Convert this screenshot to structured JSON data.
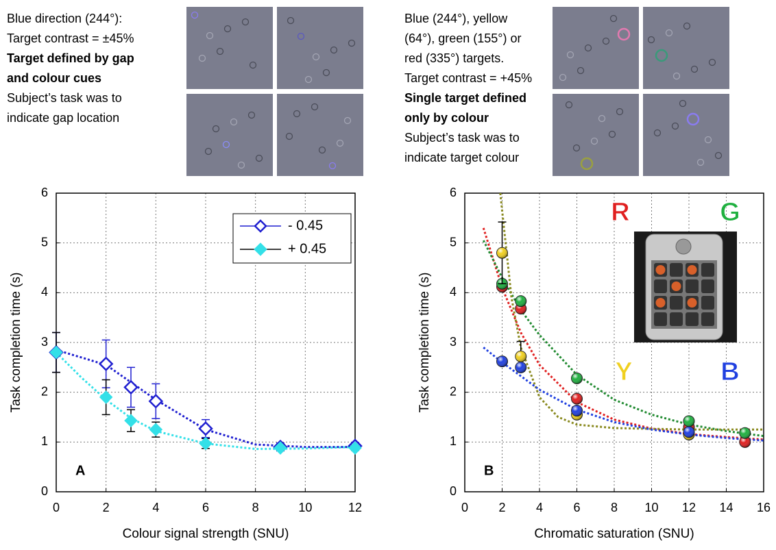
{
  "descriptions": [
    {
      "lines": [
        {
          "text": "Blue direction (244°):",
          "bold": false
        },
        {
          "text": "Target contrast = ±45%",
          "bold": false
        },
        {
          "text": "Target defined by gap",
          "bold": true
        },
        {
          "text": "and colour cues",
          "bold": true
        },
        {
          "text": "Subject’s task was to",
          "bold": false
        },
        {
          "text": "indicate gap location",
          "bold": false
        }
      ]
    },
    {
      "lines": [
        {
          "text": "Blue (244°), yellow",
          "bold": false
        },
        {
          "text": "(64°), green (155°) or",
          "bold": false
        },
        {
          "text": "red (335°) targets.",
          "bold": false
        },
        {
          "text": "Target contrast = +45%",
          "bold": false
        },
        {
          "text": "Single target defined",
          "bold": true
        },
        {
          "text": "only by colour",
          "bold": true
        },
        {
          "text": "Subject’s task was to",
          "bold": false
        },
        {
          "text": "indicate target colour",
          "bold": false
        }
      ]
    }
  ],
  "chart_data": [
    {
      "type": "scatter",
      "panel_label": "A",
      "x_label": "Colour signal strength (SNU)",
      "y_label": "Task completion time (s)",
      "xlim": [
        0,
        12
      ],
      "xticks": [
        0,
        2,
        4,
        6,
        8,
        10,
        12
      ],
      "ylim": [
        0,
        6
      ],
      "yticks": [
        0,
        1,
        2,
        3,
        4,
        5,
        6
      ],
      "grid": true,
      "legend": "upper right",
      "series": [
        {
          "name": "- 0.45",
          "color": "#1f1fd0",
          "error_color": "#1f1fd0",
          "marker": "diamond-open",
          "x": [
            0,
            2,
            3,
            4,
            6,
            9,
            12
          ],
          "values": [
            2.8,
            2.57,
            2.1,
            1.82,
            1.27,
            0.9,
            0.92
          ],
          "errors": [
            0.4,
            0.48,
            0.4,
            0.35,
            0.18,
            0.08,
            0.07
          ],
          "fit": {
            "x": [
              0,
              2,
              4,
              6,
              8,
              10,
              12
            ],
            "values": [
              2.85,
              2.55,
              1.85,
              1.25,
              0.95,
              0.9,
              0.9
            ]
          }
        },
        {
          "name": "+ 0.45",
          "color": "#33e0e8",
          "error_color": "#000000",
          "marker": "diamond",
          "x": [
            0,
            2,
            3,
            4,
            6,
            9,
            12
          ],
          "values": [
            2.8,
            1.9,
            1.43,
            1.25,
            0.97,
            0.88,
            0.88
          ],
          "errors": [
            0.4,
            0.35,
            0.22,
            0.15,
            0.1,
            0.05,
            0.05
          ],
          "fit": {
            "x": [
              0,
              1,
              2,
              3,
              4,
              6,
              8,
              10,
              12
            ],
            "values": [
              2.8,
              2.3,
              1.85,
              1.48,
              1.22,
              0.97,
              0.86,
              0.87,
              0.9
            ]
          }
        }
      ]
    },
    {
      "type": "scatter",
      "panel_label": "B",
      "x_label": "Chromatic saturation (SNU)",
      "y_label": "Task completion time (s)",
      "xlim": [
        0,
        16
      ],
      "xticks": [
        0,
        2,
        4,
        6,
        8,
        10,
        12,
        14,
        16
      ],
      "ylim": [
        0,
        6
      ],
      "yticks": [
        0,
        1,
        2,
        3,
        4,
        5,
        6
      ],
      "grid": true,
      "series": [
        {
          "name": "R",
          "color": "#e02020",
          "marker": "sphere",
          "x": [
            2,
            3,
            6,
            12,
            15
          ],
          "values": [
            4.12,
            3.68,
            1.87,
            1.3,
            1.0
          ],
          "fit": {
            "x": [
              1,
              2,
              3,
              4,
              6,
              8,
              10,
              12,
              14,
              16
            ],
            "values": [
              5.3,
              4.1,
              3.2,
              2.55,
              1.8,
              1.45,
              1.27,
              1.16,
              1.1,
              1.05
            ]
          }
        },
        {
          "name": "G",
          "color": "#20b040",
          "marker": "sphere",
          "x": [
            2,
            3,
            6,
            12,
            15
          ],
          "values": [
            4.18,
            3.83,
            2.28,
            1.42,
            1.18
          ],
          "fit": {
            "x": [
              1,
              2,
              3,
              4,
              6,
              8,
              10,
              12,
              14,
              16
            ],
            "values": [
              5.05,
              4.3,
              3.65,
              3.15,
              2.35,
              1.85,
              1.55,
              1.35,
              1.22,
              1.12
            ]
          }
        },
        {
          "name": "Y",
          "color": "#f0d020",
          "marker": "sphere",
          "x": [
            2,
            3,
            6,
            12
          ],
          "values": [
            4.8,
            2.72,
            1.55,
            1.15
          ],
          "errors": [
            0.62,
            0.3,
            0.05,
            0.05
          ],
          "fit": {
            "x": [
              1.9,
              2.5,
              3,
              4,
              5,
              6,
              8,
              12,
              16
            ],
            "values": [
              6,
              3.9,
              2.9,
              1.9,
              1.5,
              1.35,
              1.28,
              1.25,
              1.25
            ]
          }
        },
        {
          "name": "B",
          "color": "#2040e0",
          "marker": "sphere",
          "x": [
            2,
            3,
            6,
            12
          ],
          "values": [
            2.62,
            2.5,
            1.63,
            1.2
          ],
          "fit": {
            "x": [
              1,
              2,
              4,
              6,
              8,
              10,
              12,
              14,
              16
            ],
            "values": [
              2.9,
              2.6,
              2.05,
              1.65,
              1.4,
              1.25,
              1.15,
              1.08,
              1.03
            ]
          }
        }
      ]
    }
  ]
}
